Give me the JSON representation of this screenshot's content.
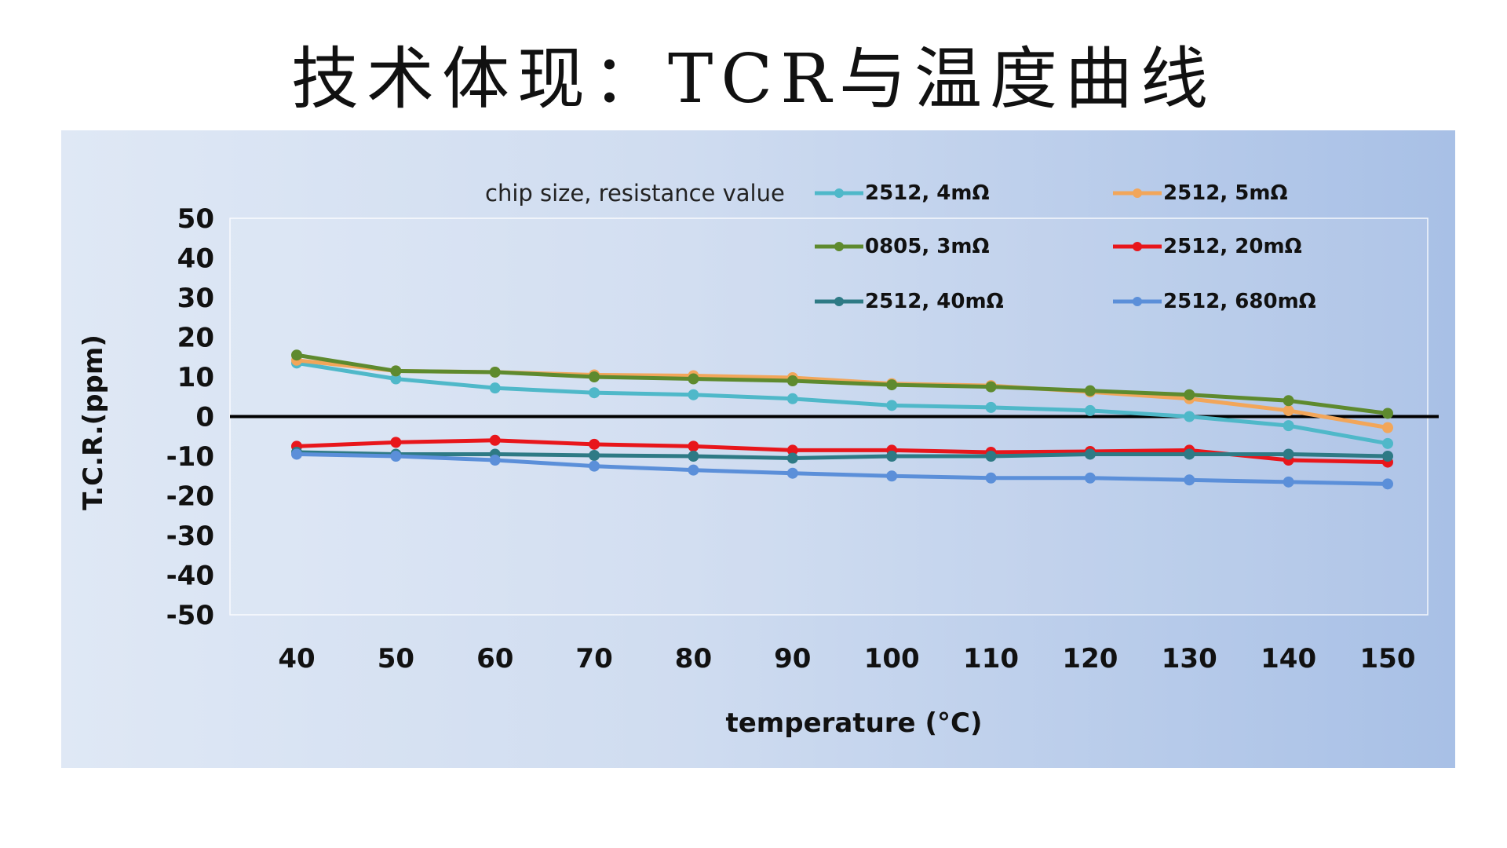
{
  "slide": {
    "title": "技术体现：TCR与温度曲线"
  },
  "chart_data": {
    "type": "line",
    "title": "",
    "legend_title": "chip size, resistance value",
    "xlabel": "temperature (°C)",
    "ylabel": "T.C.R.(ppm)",
    "x": [
      40,
      50,
      60,
      70,
      80,
      90,
      100,
      110,
      120,
      130,
      140,
      150
    ],
    "ylim": [
      -50,
      50
    ],
    "yticks": [
      50,
      40,
      30,
      20,
      10,
      0,
      -10,
      -20,
      -30,
      -40,
      -50
    ],
    "grid": false,
    "legend_position": "top",
    "series": [
      {
        "name": "2512, 4mΩ",
        "color": "#4fb8c9",
        "values": [
          13.5,
          9.5,
          7.2,
          6,
          5.5,
          4.5,
          2.8,
          2.3,
          1.5,
          0,
          -2.3,
          -6.8
        ]
      },
      {
        "name": "2512, 5mΩ",
        "color": "#f2a65a",
        "values": [
          14.2,
          11.5,
          11.2,
          10.5,
          10.3,
          9.8,
          8.3,
          7.8,
          6.2,
          4.5,
          1.5,
          -2.8
        ]
      },
      {
        "name": "0805, 3mΩ",
        "color": "#5e8a2e",
        "values": [
          15.5,
          11.5,
          11.2,
          10,
          9.5,
          9,
          8,
          7.5,
          6.5,
          5.5,
          4,
          0.8
        ]
      },
      {
        "name": "2512, 20mΩ",
        "color": "#e8161b",
        "values": [
          -7.5,
          -6.5,
          -6,
          -7,
          -7.5,
          -8.5,
          -8.5,
          -9,
          -8.8,
          -8.5,
          -11,
          -11.5
        ]
      },
      {
        "name": "2512, 40mΩ",
        "color": "#2e7a85",
        "values": [
          -9,
          -9.5,
          -9.5,
          -9.8,
          -10,
          -10.5,
          -10,
          -10,
          -9.5,
          -9.5,
          -9.5,
          -10
        ]
      },
      {
        "name": "2512, 680mΩ",
        "color": "#5b8fd9",
        "values": [
          -9.5,
          -10,
          -11,
          -12.5,
          -13.5,
          -14.3,
          -15,
          -15.5,
          -15.5,
          -16,
          -16.5,
          -17
        ]
      }
    ]
  }
}
